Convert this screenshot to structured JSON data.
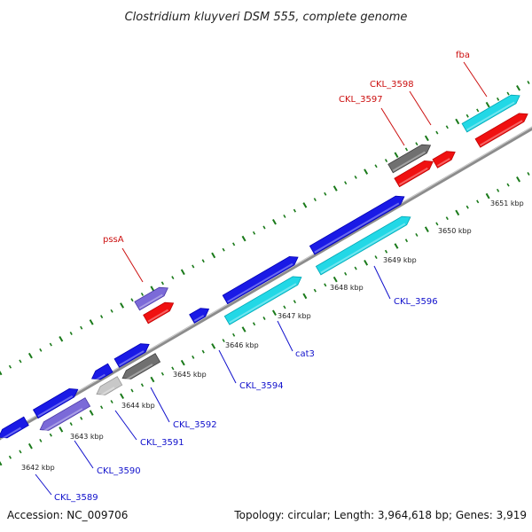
{
  "title": "Clostridium kluyveri DSM 555, complete genome",
  "footer": {
    "accession": "Accession: NC_009706",
    "summary": "Topology: circular; Length: 3,964,618 bp; Genes: 3,919"
  },
  "colors": {
    "backbone": "#8c8c8c",
    "tick_major": "#1a7a1a",
    "tick_minor": "#3a9a3a",
    "label_blue": "#1010cc",
    "label_red": "#cc1010",
    "gene_blue": "#1a1ae6",
    "gene_cyan": "#22d8e6",
    "gene_red": "#f01010",
    "gene_gray": "#707070",
    "gene_lightgray": "#c8c8c8",
    "gene_violet": "#7b6ad8"
  },
  "ticks": [
    "3642 kbp",
    "3643 kbp",
    "3644 kbp",
    "3645 kbp",
    "3646 kbp",
    "3647 kbp",
    "3648 kbp",
    "3649 kbp",
    "3650 kbp",
    "3651 kbp"
  ],
  "labels": [
    {
      "text": "CKL_3589",
      "color": "blue"
    },
    {
      "text": "CKL_3590",
      "color": "blue"
    },
    {
      "text": "CKL_3591",
      "color": "blue"
    },
    {
      "text": "CKL_3592",
      "color": "blue"
    },
    {
      "text": "CKL_3594",
      "color": "blue"
    },
    {
      "text": "cat3",
      "color": "blue"
    },
    {
      "text": "CKL_3596",
      "color": "blue"
    },
    {
      "text": "pssA",
      "color": "red"
    },
    {
      "text": "CKL_3597",
      "color": "red"
    },
    {
      "text": "CKL_3598",
      "color": "red"
    },
    {
      "text": "fba",
      "color": "red"
    }
  ]
}
